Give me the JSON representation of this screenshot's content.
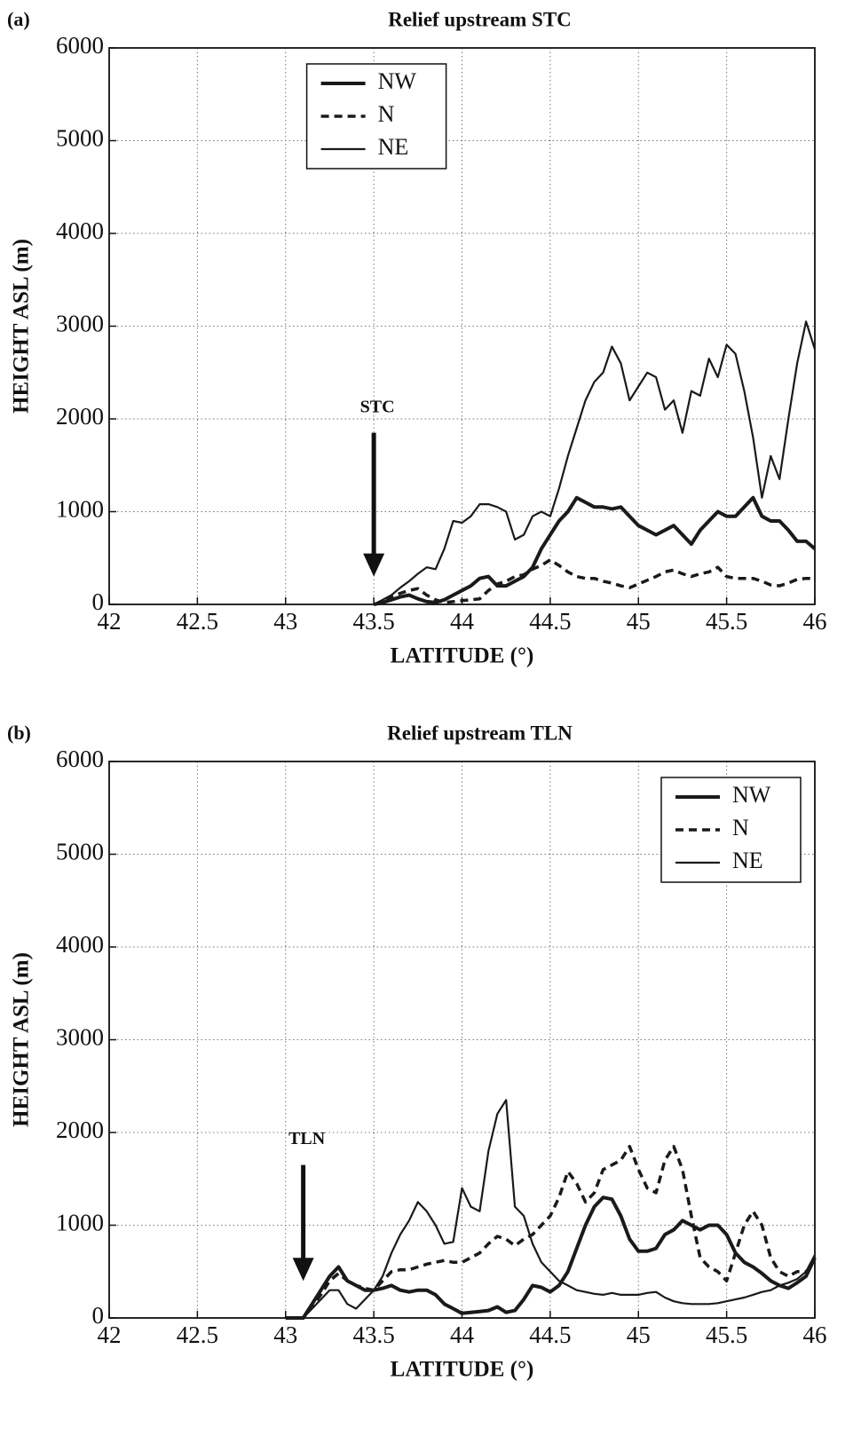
{
  "chart_data": [
    {
      "type": "line",
      "panel_label": "(a)",
      "title": "Relief upstream STC",
      "xlabel": "LATITUDE (°)",
      "ylabel": "HEIGHT ASL (m)",
      "xlim": [
        42,
        46
      ],
      "xticks": [
        42,
        42.5,
        43,
        43.5,
        44,
        44.5,
        45,
        45.5,
        46
      ],
      "ylim": [
        0,
        6000
      ],
      "yticks": [
        0,
        1000,
        2000,
        3000,
        4000,
        5000,
        6000
      ],
      "grid": true,
      "legend": "upper left",
      "annotation": {
        "text": "STC",
        "x": 43.5,
        "y_from": 1850,
        "y_to": 300
      },
      "x": [
        43.5,
        43.55,
        43.6,
        43.65,
        43.7,
        43.75,
        43.8,
        43.85,
        43.9,
        43.95,
        44,
        44.05,
        44.1,
        44.15,
        44.2,
        44.25,
        44.3,
        44.35,
        44.4,
        44.45,
        44.5,
        44.55,
        44.6,
        44.65,
        44.7,
        44.75,
        44.8,
        44.85,
        44.9,
        44.95,
        45,
        45.05,
        45.1,
        45.15,
        45.2,
        45.25,
        45.3,
        45.35,
        45.4,
        45.45,
        45.5,
        45.55,
        45.6,
        45.65,
        45.7,
        45.75,
        45.8,
        45.85,
        45.9,
        45.95,
        46
      ],
      "series": [
        {
          "name": "NW",
          "color": "#1a1a1a",
          "line_style": "thick",
          "values": [
            0,
            20,
            50,
            80,
            100,
            60,
            30,
            20,
            50,
            100,
            150,
            200,
            280,
            300,
            200,
            200,
            250,
            300,
            400,
            600,
            750,
            900,
            1000,
            1150,
            1100,
            1050,
            1050,
            1030,
            1050,
            950,
            850,
            800,
            750,
            800,
            850,
            750,
            650,
            800,
            900,
            1000,
            950,
            950,
            1050,
            1150,
            950,
            900,
            900,
            800,
            680,
            680,
            600
          ]
        },
        {
          "name": "N",
          "color": "#1a1a1a",
          "line_style": "dashed",
          "values": [
            0,
            30,
            80,
            120,
            150,
            170,
            100,
            50,
            20,
            30,
            40,
            50,
            60,
            150,
            220,
            250,
            300,
            320,
            380,
            420,
            480,
            420,
            350,
            300,
            280,
            280,
            250,
            230,
            200,
            180,
            220,
            260,
            300,
            350,
            370,
            330,
            300,
            330,
            350,
            400,
            300,
            280,
            280,
            280,
            250,
            210,
            200,
            230,
            270,
            280,
            280
          ]
        },
        {
          "name": "NE",
          "color": "#1a1a1a",
          "line_style": "thin",
          "values": [
            0,
            50,
            100,
            180,
            250,
            330,
            400,
            380,
            600,
            900,
            880,
            950,
            1080,
            1080,
            1050,
            1000,
            700,
            750,
            950,
            1000,
            950,
            1250,
            1600,
            1900,
            2200,
            2400,
            2500,
            2780,
            2600,
            2200,
            2350,
            2500,
            2450,
            2100,
            2200,
            1850,
            2300,
            2250,
            2650,
            2450,
            2800,
            2700,
            2300,
            1800,
            1150,
            1600,
            1350,
            2000,
            2600,
            3050,
            2750
          ]
        }
      ]
    },
    {
      "type": "line",
      "panel_label": "(b)",
      "title": "Relief upstream TLN",
      "xlabel": "LATITUDE (°)",
      "ylabel": "HEIGHT ASL (m)",
      "xlim": [
        42,
        46
      ],
      "xticks": [
        42,
        42.5,
        43,
        43.5,
        44,
        44.5,
        45,
        45.5,
        46
      ],
      "ylim": [
        0,
        6000
      ],
      "yticks": [
        0,
        1000,
        2000,
        3000,
        4000,
        5000,
        6000
      ],
      "grid": true,
      "legend": "upper right",
      "annotation": {
        "text": "TLN",
        "x": 43.1,
        "y_from": 1650,
        "y_to": 400
      },
      "x": [
        43,
        43.05,
        43.1,
        43.15,
        43.2,
        43.25,
        43.3,
        43.35,
        43.4,
        43.45,
        43.5,
        43.55,
        43.6,
        43.65,
        43.7,
        43.75,
        43.8,
        43.85,
        43.9,
        43.95,
        44,
        44.05,
        44.1,
        44.15,
        44.2,
        44.25,
        44.3,
        44.35,
        44.4,
        44.45,
        44.5,
        44.55,
        44.6,
        44.65,
        44.7,
        44.75,
        44.8,
        44.85,
        44.9,
        44.95,
        45,
        45.05,
        45.1,
        45.15,
        45.2,
        45.25,
        45.3,
        45.35,
        45.4,
        45.45,
        45.5,
        45.55,
        45.6,
        45.65,
        45.7,
        45.75,
        45.8,
        45.85,
        45.9,
        45.95,
        46
      ],
      "series": [
        {
          "name": "NW",
          "color": "#1a1a1a",
          "line_style": "thick",
          "values": [
            0,
            0,
            0,
            150,
            300,
            450,
            550,
            400,
            350,
            300,
            300,
            320,
            350,
            300,
            280,
            300,
            300,
            250,
            150,
            100,
            50,
            60,
            70,
            80,
            120,
            60,
            80,
            200,
            350,
            330,
            280,
            350,
            500,
            750,
            1000,
            1200,
            1300,
            1280,
            1100,
            850,
            720,
            720,
            750,
            900,
            950,
            1050,
            1000,
            950,
            1000,
            1000,
            900,
            700,
            600,
            550,
            480,
            400,
            350,
            320,
            380,
            450,
            650
          ]
        },
        {
          "name": "N",
          "color": "#1a1a1a",
          "line_style": "dashed",
          "values": [
            0,
            0,
            0,
            120,
            250,
            400,
            480,
            400,
            350,
            320,
            300,
            400,
            500,
            520,
            520,
            550,
            580,
            600,
            620,
            600,
            600,
            650,
            700,
            800,
            880,
            850,
            780,
            850,
            900,
            1000,
            1100,
            1300,
            1580,
            1450,
            1250,
            1350,
            1600,
            1650,
            1700,
            1850,
            1600,
            1400,
            1350,
            1700,
            1850,
            1600,
            1100,
            650,
            550,
            500,
            400,
            700,
            1000,
            1150,
            1000,
            650,
            500,
            450,
            500,
            500,
            600
          ]
        },
        {
          "name": "NE",
          "color": "#1a1a1a",
          "line_style": "thin",
          "values": [
            0,
            0,
            0,
            100,
            200,
            300,
            300,
            150,
            100,
            200,
            300,
            450,
            700,
            900,
            1050,
            1250,
            1150,
            1000,
            800,
            820,
            1400,
            1200,
            1150,
            1800,
            2200,
            2350,
            1200,
            1100,
            800,
            600,
            500,
            400,
            350,
            300,
            280,
            260,
            250,
            270,
            250,
            250,
            250,
            270,
            280,
            220,
            180,
            160,
            150,
            150,
            150,
            160,
            180,
            200,
            220,
            250,
            280,
            300,
            350,
            380,
            420,
            500,
            680
          ]
        }
      ]
    }
  ]
}
